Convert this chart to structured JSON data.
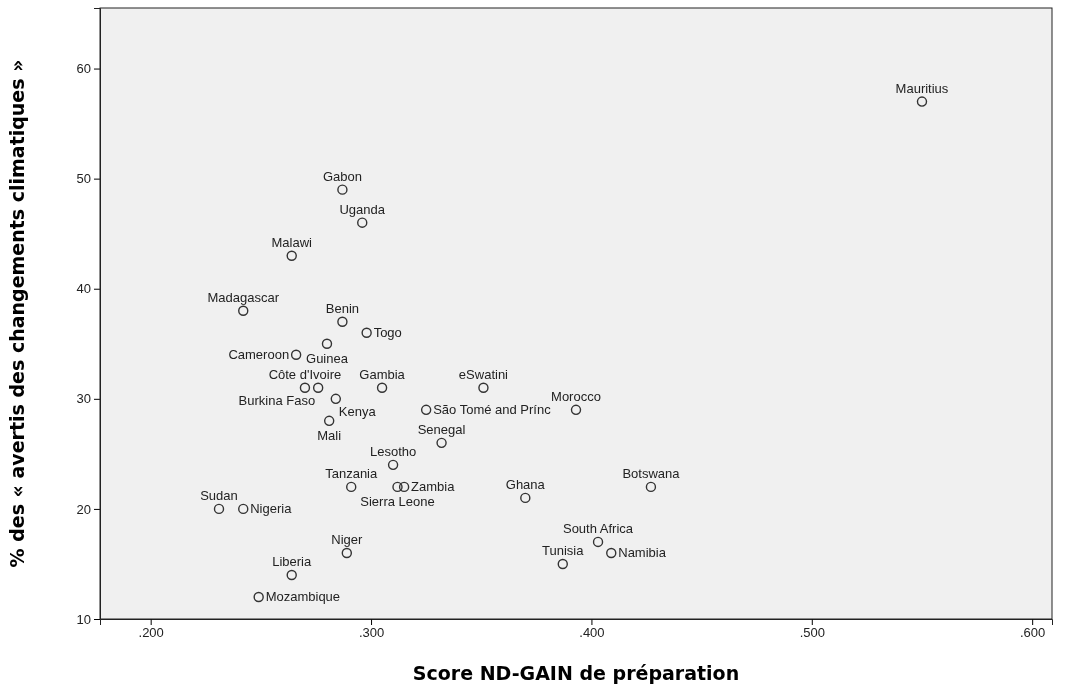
{
  "chart_data": {
    "type": "scatter",
    "xlabel": "Score ND-GAIN de préparation",
    "ylabel": "% des « avertis des changements climatiques »",
    "x": [
      0.287,
      0.296,
      0.264,
      0.242,
      0.287,
      0.298,
      0.28,
      0.266,
      0.27,
      0.276,
      0.305,
      0.351,
      0.284,
      0.281,
      0.325,
      0.393,
      0.332,
      0.31,
      0.291,
      0.312,
      0.315,
      0.37,
      0.427,
      0.231,
      0.242,
      0.289,
      0.264,
      0.249,
      0.403,
      0.409,
      0.387,
      0.55
    ],
    "values": [
      49,
      46,
      43,
      38,
      37,
      36,
      35,
      34,
      31,
      31,
      31,
      31,
      30,
      28,
      29,
      29,
      26,
      24,
      22,
      22,
      22,
      21,
      22,
      20,
      20,
      16,
      14,
      12,
      17,
      16,
      15,
      57
    ],
    "value_labels": [
      "Gabon",
      "Uganda",
      "Malawi",
      "Madagascar",
      "Benin",
      "Togo",
      "Guinea",
      "Cameroon",
      "Côte d'Ivoire",
      "Burkina Faso",
      "Gambia",
      "eSwatini",
      "Kenya",
      "Mali",
      "São Tomé and Prínc",
      "Morocco",
      "Senegal",
      "Lesotho",
      "Tanzania",
      "Sierra Leone",
      "Zambia",
      "Ghana",
      "Botswana",
      "Sudan",
      "Nigeria",
      "Niger",
      "Liberia",
      "Mozambique",
      "South Africa",
      "Namibia",
      "Tunisia",
      "Mauritius"
    ],
    "color": "#333333",
    "marker": "circle",
    "xlim": [
      0.177,
      0.609
    ],
    "ylim": [
      10,
      65.5
    ],
    "xticks": [
      {
        "value": 0.2,
        "label": ".200"
      },
      {
        "value": 0.3,
        "label": ".300"
      },
      {
        "value": 0.4,
        "label": ".400"
      },
      {
        "value": 0.5,
        "label": ".500"
      },
      {
        "value": 0.6,
        "label": ".600"
      }
    ],
    "yticks": [
      10,
      20,
      30,
      40,
      50,
      60
    ]
  }
}
